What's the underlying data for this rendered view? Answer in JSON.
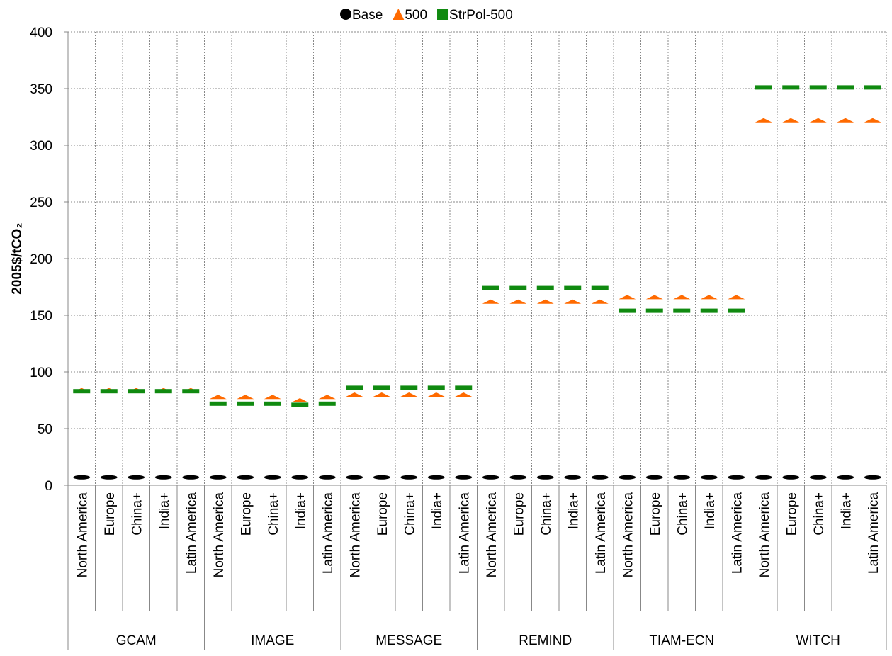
{
  "chart_data": {
    "type": "scatter",
    "y_label": "2005$/tCO₂",
    "categories": [
      "North America",
      "Europe",
      "China+",
      "India+",
      "Latin America",
      "North America",
      "Europe",
      "China+",
      "India+",
      "Latin America",
      "North America",
      "Europe",
      "China+",
      "India+",
      "Latin America",
      "North America",
      "Europe",
      "China+",
      "India+",
      "Latin America",
      "North America",
      "Europe",
      "China+",
      "India+",
      "Latin America",
      "North America",
      "Europe",
      "China+",
      "India+",
      "Latin America"
    ],
    "groups": [
      "GCAM",
      "IMAGE",
      "MESSAGE",
      "REMIND",
      "TIAM-ECN",
      "WITCH"
    ],
    "series": [
      {
        "name": "Base",
        "color": "#000000",
        "marker": "circle",
        "values": [
          7,
          7,
          7,
          7,
          7,
          7,
          7,
          7,
          7,
          7,
          7,
          7,
          7,
          7,
          7,
          7,
          7,
          7,
          7,
          7,
          7,
          7,
          7,
          7,
          7,
          7,
          7,
          7,
          7,
          7
        ]
      },
      {
        "name": "500",
        "color": "#ff6a00",
        "marker": "triangle",
        "values": [
          84,
          84,
          84,
          84,
          84,
          78,
          78,
          78,
          75,
          78,
          80,
          80,
          80,
          80,
          80,
          162,
          162,
          162,
          162,
          162,
          166,
          166,
          166,
          166,
          166,
          322,
          322,
          322,
          322,
          322
        ]
      },
      {
        "name": "StrPol-500",
        "color": "#108a10",
        "marker": "square",
        "values": [
          83,
          83,
          83,
          83,
          83,
          72,
          72,
          72,
          71,
          72,
          86,
          86,
          86,
          86,
          86,
          174,
          174,
          174,
          174,
          174,
          154,
          154,
          154,
          154,
          154,
          351,
          351,
          351,
          351,
          351
        ]
      }
    ],
    "ylim": [
      0,
      400
    ],
    "yticks": [
      0,
      50,
      100,
      150,
      200,
      250,
      300,
      350,
      400
    ],
    "grid": true
  }
}
